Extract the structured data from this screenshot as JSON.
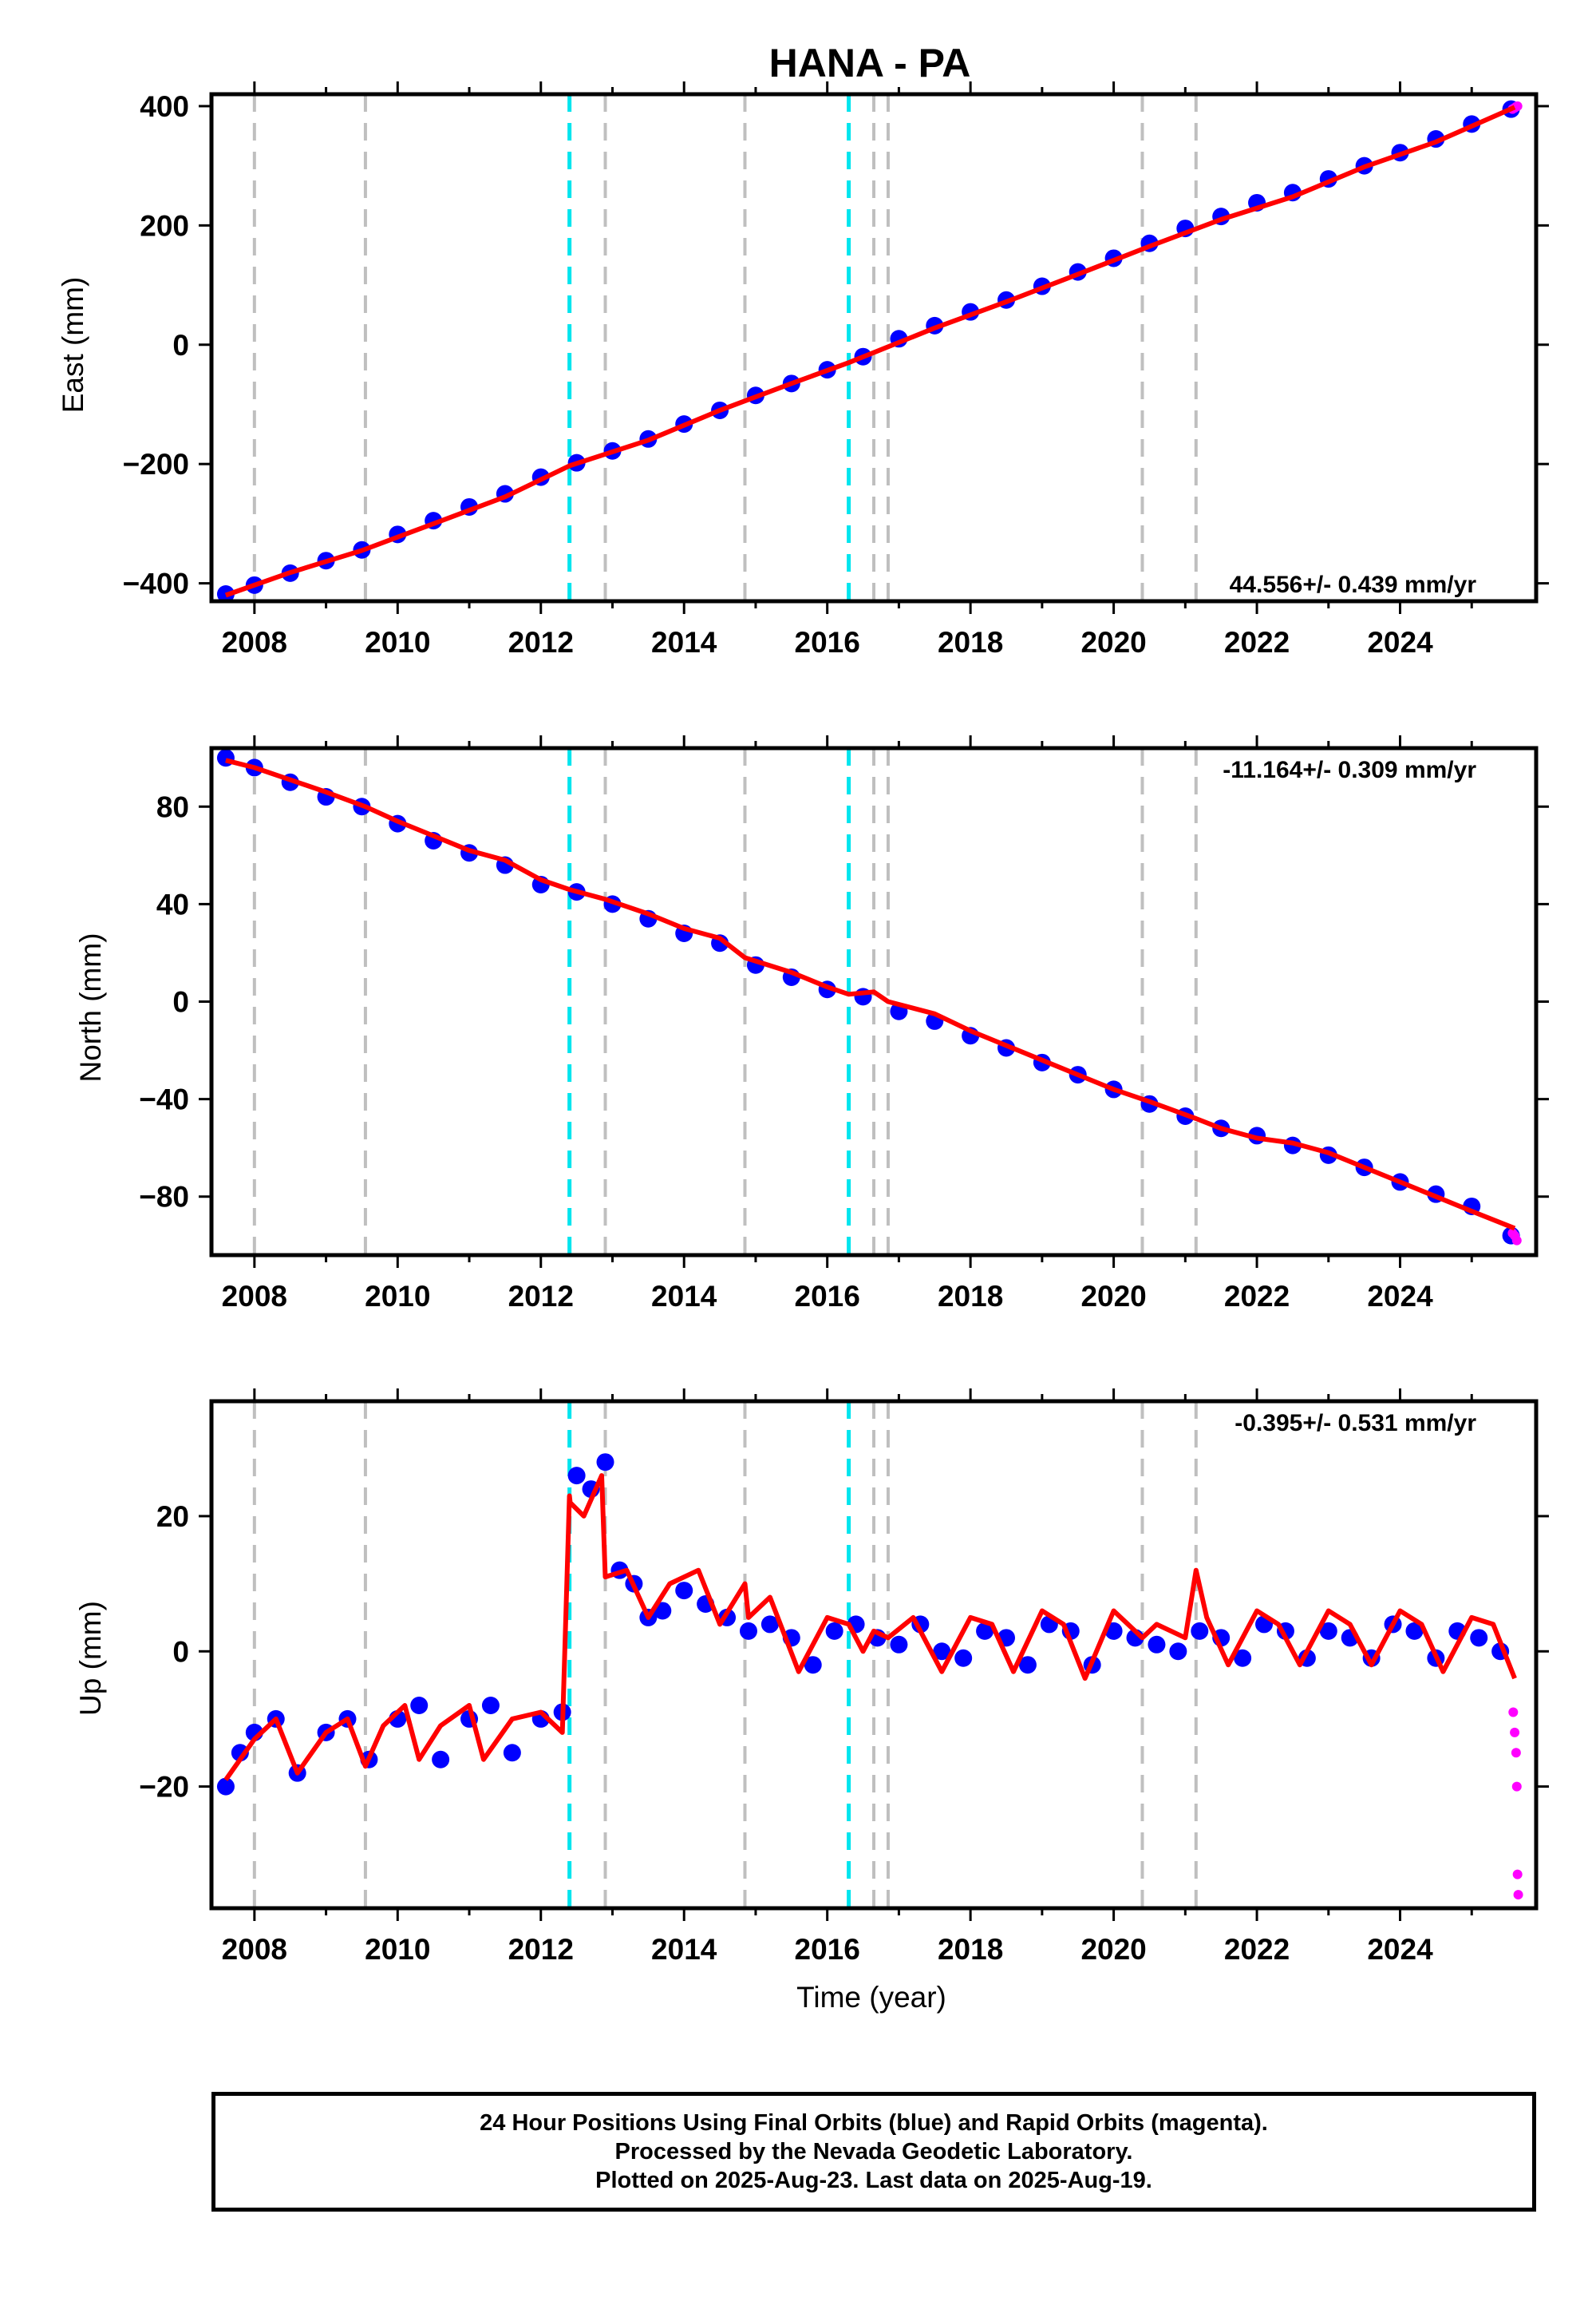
{
  "figure": {
    "title": "HANA - PA",
    "caption": [
      "24 Hour Positions Using Final Orbits (blue) and Rapid Orbits (magenta).",
      "Processed by the Nevada Geodetic Laboratory.",
      "Plotted on 2025-Aug-23. Last data on 2025-Aug-19."
    ],
    "colors": {
      "final_orbits": "#0000ff",
      "rapid_orbits": "#ff00ff",
      "model_fit": "#ff0000",
      "equipment_change_lines": "#bfbfbf",
      "earthquake_lines": "#00e5ee"
    }
  },
  "chart_data": [
    {
      "type": "scatter",
      "ylabel": "East (mm)",
      "xlabel": "",
      "rate_label": "44.556+/- 0.439 mm/yr",
      "xlim": [
        2007.4,
        2025.9
      ],
      "ylim": [
        -430,
        420
      ],
      "x_ticks": [
        2008,
        2010,
        2012,
        2014,
        2016,
        2018,
        2020,
        2022,
        2024
      ],
      "y_ticks": [
        -400,
        -200,
        0,
        200,
        400
      ],
      "y_tick_labels": [
        "−400",
        "−200",
        "0",
        "200",
        "400"
      ],
      "gray_dashed_lines": [
        2008.0,
        2009.55,
        2012.9,
        2014.85,
        2016.65,
        2016.85,
        2020.4,
        2021.15
      ],
      "cyan_dashed_lines": [
        2012.4,
        2016.3
      ],
      "fit": {
        "x": [
          2007.6,
          2008.5,
          2009.5,
          2010.5,
          2011.5,
          2012.4,
          2013.5,
          2014.5,
          2015.5,
          2016.3,
          2017.5,
          2018.5,
          2019.5,
          2020.5,
          2021.5,
          2022.5,
          2023.5,
          2024.5,
          2025.6
        ],
        "y": [
          -420,
          -382,
          -345,
          -300,
          -255,
          -203,
          -160,
          -110,
          -65,
          -30,
          28,
          72,
          118,
          165,
          210,
          248,
          298,
          340,
          398
        ]
      },
      "final_orbits": {
        "x": [
          2007.6,
          2008.0,
          2008.5,
          2009.0,
          2009.5,
          2010.0,
          2010.5,
          2011.0,
          2011.5,
          2012.0,
          2012.5,
          2013.0,
          2013.5,
          2014.0,
          2014.5,
          2015.0,
          2015.5,
          2016.0,
          2016.5,
          2017.0,
          2017.5,
          2018.0,
          2018.5,
          2019.0,
          2019.5,
          2020.0,
          2020.5,
          2021.0,
          2021.5,
          2022.0,
          2022.5,
          2023.0,
          2023.5,
          2024.0,
          2024.5,
          2025.0,
          2025.55
        ],
        "y": [
          -418,
          -403,
          -383,
          -362,
          -344,
          -318,
          -295,
          -272,
          -250,
          -222,
          -198,
          -178,
          -158,
          -133,
          -110,
          -85,
          -65,
          -42,
          -20,
          10,
          32,
          55,
          75,
          98,
          122,
          145,
          170,
          195,
          215,
          238,
          255,
          278,
          300,
          322,
          345,
          370,
          395
        ]
      },
      "rapid_orbits": {
        "x": [
          2025.57,
          2025.6,
          2025.62,
          2025.64
        ],
        "y": [
          395,
          397,
          399,
          400
        ]
      }
    },
    {
      "type": "scatter",
      "ylabel": "North (mm)",
      "xlabel": "",
      "rate_label": "-11.164+/- 0.309 mm/yr",
      "xlim": [
        2007.4,
        2025.9
      ],
      "ylim": [
        -104,
        104
      ],
      "x_ticks": [
        2008,
        2010,
        2012,
        2014,
        2016,
        2018,
        2020,
        2022,
        2024
      ],
      "y_ticks": [
        -80,
        -40,
        0,
        40,
        80
      ],
      "y_tick_labels": [
        "−80",
        "−40",
        "0",
        "40",
        "80"
      ],
      "gray_dashed_lines": [
        2008.0,
        2009.55,
        2012.9,
        2014.85,
        2016.65,
        2016.85,
        2020.4,
        2021.15
      ],
      "cyan_dashed_lines": [
        2012.4,
        2016.3
      ],
      "fit": {
        "x": [
          2007.6,
          2008.0,
          2008.5,
          2009.0,
          2009.55,
          2010.0,
          2010.5,
          2011.0,
          2011.5,
          2012.0,
          2012.4,
          2012.9,
          2013.5,
          2014.0,
          2014.5,
          2014.85,
          2015.5,
          2016.0,
          2016.3,
          2016.65,
          2016.85,
          2017.5,
          2018.0,
          2018.5,
          2019.0,
          2019.5,
          2020.0,
          2020.5,
          2021.15,
          2021.5,
          2022.0,
          2022.5,
          2023.0,
          2023.5,
          2024.0,
          2024.5,
          2025.0,
          2025.6
        ],
        "y": [
          99,
          96,
          91,
          86,
          80,
          74,
          68,
          62,
          58,
          50,
          46,
          42,
          36,
          30,
          26,
          18,
          12,
          6,
          3,
          4,
          0,
          -5,
          -12,
          -18,
          -24,
          -30,
          -36,
          -41,
          -48,
          -52,
          -56,
          -58,
          -62,
          -68,
          -74,
          -80,
          -86,
          -93
        ]
      },
      "final_orbits": {
        "x": [
          2007.6,
          2008.0,
          2008.5,
          2009.0,
          2009.5,
          2010.0,
          2010.5,
          2011.0,
          2011.5,
          2012.0,
          2012.5,
          2013.0,
          2013.5,
          2014.0,
          2014.5,
          2015.0,
          2015.5,
          2016.0,
          2016.5,
          2017.0,
          2017.5,
          2018.0,
          2018.5,
          2019.0,
          2019.5,
          2020.0,
          2020.5,
          2021.0,
          2021.5,
          2022.0,
          2022.5,
          2023.0,
          2023.5,
          2024.0,
          2024.5,
          2025.0,
          2025.55
        ],
        "y": [
          100,
          96,
          90,
          84,
          80,
          73,
          66,
          61,
          56,
          48,
          45,
          40,
          34,
          28,
          24,
          15,
          10,
          5,
          2,
          -4,
          -8,
          -14,
          -19,
          -25,
          -30,
          -36,
          -42,
          -47,
          -52,
          -55,
          -59,
          -63,
          -68,
          -74,
          -79,
          -84,
          -96
        ]
      },
      "rapid_orbits": {
        "x": [
          2025.57,
          2025.6,
          2025.63
        ],
        "y": [
          -95,
          -96,
          -98
        ]
      }
    },
    {
      "type": "scatter",
      "ylabel": "Up (mm)",
      "xlabel": "Time (year)",
      "rate_label": "-0.395+/- 0.531 mm/yr",
      "xlim": [
        2007.4,
        2025.9
      ],
      "ylim": [
        -38,
        37
      ],
      "x_ticks": [
        2008,
        2010,
        2012,
        2014,
        2016,
        2018,
        2020,
        2022,
        2024
      ],
      "y_ticks": [
        -20,
        0,
        20
      ],
      "y_tick_labels": [
        "−20",
        "0",
        "20"
      ],
      "gray_dashed_lines": [
        2008.0,
        2009.55,
        2012.9,
        2014.85,
        2016.65,
        2016.85,
        2020.4,
        2021.15
      ],
      "cyan_dashed_lines": [
        2012.4,
        2016.3
      ],
      "fit": {
        "x": [
          2007.6,
          2008.0,
          2008.3,
          2008.6,
          2009.0,
          2009.3,
          2009.55,
          2009.8,
          2010.1,
          2010.3,
          2010.6,
          2011.0,
          2011.2,
          2011.6,
          2012.0,
          2012.3,
          2012.4,
          2012.41,
          2012.6,
          2012.85,
          2012.9,
          2013.2,
          2013.5,
          2013.8,
          2014.2,
          2014.5,
          2014.85,
          2014.9,
          2015.2,
          2015.6,
          2016.0,
          2016.3,
          2016.5,
          2016.65,
          2016.85,
          2017.2,
          2017.6,
          2018.0,
          2018.3,
          2018.6,
          2019.0,
          2019.3,
          2019.6,
          2020.0,
          2020.4,
          2020.6,
          2021.0,
          2021.15,
          2021.3,
          2021.6,
          2022.0,
          2022.3,
          2022.6,
          2023.0,
          2023.3,
          2023.6,
          2024.0,
          2024.3,
          2024.6,
          2025.0,
          2025.3,
          2025.6
        ],
        "y": [
          -19,
          -13,
          -10,
          -18,
          -12,
          -10,
          -17,
          -11,
          -8,
          -16,
          -11,
          -8,
          -16,
          -10,
          -9,
          -12,
          23,
          22,
          20,
          26,
          11,
          12,
          5,
          10,
          12,
          4,
          10,
          5,
          8,
          -3,
          5,
          4,
          0,
          3,
          2,
          5,
          -3,
          5,
          4,
          -3,
          6,
          4,
          -4,
          6,
          2,
          4,
          2,
          12,
          5,
          -2,
          6,
          4,
          -2,
          6,
          4,
          -2,
          6,
          4,
          -3,
          5,
          4,
          -4
        ]
      },
      "final_orbits": {
        "x": [
          2007.6,
          2007.8,
          2008.0,
          2008.3,
          2008.6,
          2009.0,
          2009.3,
          2009.6,
          2010.0,
          2010.3,
          2010.6,
          2011.0,
          2011.3,
          2011.6,
          2012.0,
          2012.3,
          2012.5,
          2012.7,
          2012.9,
          2013.1,
          2013.3,
          2013.5,
          2013.7,
          2014.0,
          2014.3,
          2014.6,
          2014.9,
          2015.2,
          2015.5,
          2015.8,
          2016.1,
          2016.4,
          2016.7,
          2017.0,
          2017.3,
          2017.6,
          2017.9,
          2018.2,
          2018.5,
          2018.8,
          2019.1,
          2019.4,
          2019.7,
          2020.0,
          2020.3,
          2020.6,
          2020.9,
          2021.2,
          2021.5,
          2021.8,
          2022.1,
          2022.4,
          2022.7,
          2023.0,
          2023.3,
          2023.6,
          2023.9,
          2024.2,
          2024.5,
          2024.8,
          2025.1,
          2025.4
        ],
        "y": [
          -20,
          -15,
          -12,
          -10,
          -18,
          -12,
          -10,
          -16,
          -10,
          -8,
          -16,
          -10,
          -8,
          -15,
          -10,
          -9,
          26,
          24,
          28,
          12,
          10,
          5,
          6,
          9,
          7,
          5,
          3,
          4,
          2,
          -2,
          3,
          4,
          2,
          1,
          4,
          0,
          -1,
          3,
          2,
          -2,
          4,
          3,
          -2,
          3,
          2,
          1,
          0,
          3,
          2,
          -1,
          4,
          3,
          -1,
          3,
          2,
          -1,
          4,
          3,
          -1,
          3,
          2,
          0
        ]
      },
      "rapid_orbits": {
        "x": [
          2025.58,
          2025.6,
          2025.62,
          2025.63,
          2025.64,
          2025.65
        ],
        "y": [
          -9,
          -12,
          -15,
          -20,
          -33,
          -36
        ]
      }
    }
  ]
}
